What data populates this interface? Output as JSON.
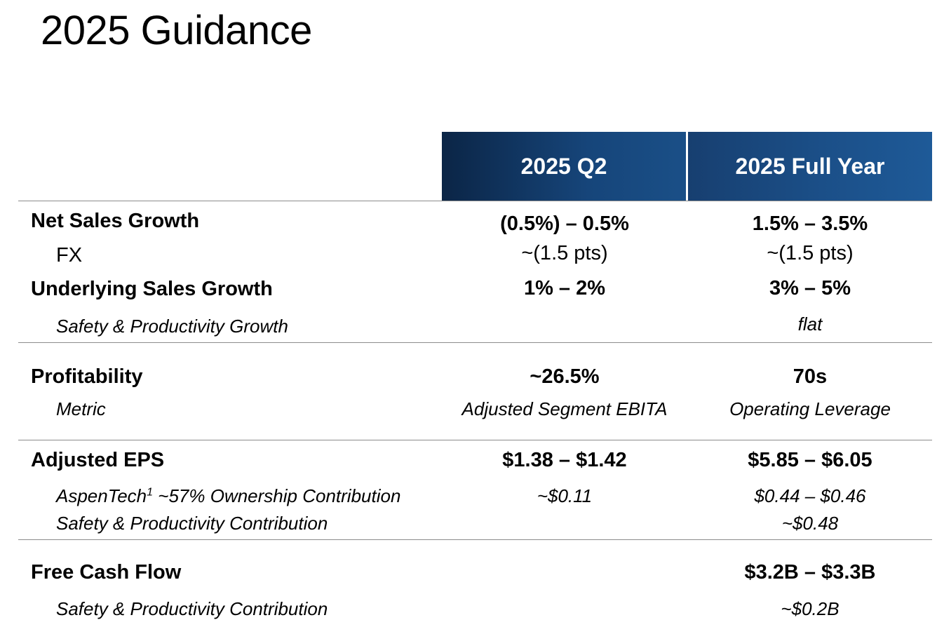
{
  "title": "2025 Guidance",
  "columns": {
    "q2": "2025 Q2",
    "fy": "2025 Full Year"
  },
  "colors": {
    "header_dark": "#0b2546",
    "header_light": "#1e5a98",
    "header_text": "#ffffff",
    "divider": "#8c8c8c"
  },
  "rows": [
    {
      "label": "Net Sales Growth",
      "q2": "(0.5%) – 0.5%",
      "fy": "1.5% – 3.5%"
    },
    {
      "label": "FX",
      "q2": "~(1.5 pts)",
      "fy": "~(1.5 pts)"
    },
    {
      "label": "Underlying Sales Growth",
      "q2": "1% – 2%",
      "fy": "3% – 5%"
    },
    {
      "label": "Safety & Productivity Growth",
      "q2": "",
      "fy": "flat"
    },
    {
      "label": "Profitability",
      "q2": "~26.5%",
      "fy": "70s"
    },
    {
      "label": "Metric",
      "q2": "Adjusted Segment EBITA",
      "fy": "Operating Leverage"
    },
    {
      "label": "Adjusted EPS",
      "q2": "$1.38 – $1.42",
      "fy": "$5.85 – $6.05"
    },
    {
      "label": "AspenTech",
      "label_sup": "1",
      "label_suffix": " ~57% Ownership Contribution",
      "q2": "~$0.11",
      "fy": "$0.44 – $0.46"
    },
    {
      "label": "Safety & Productivity Contribution",
      "q2": "",
      "fy": "~$0.48"
    },
    {
      "label": "Free Cash Flow",
      "q2": "",
      "fy": "$3.2B – $3.3B"
    },
    {
      "label": "Safety & Productivity Contribution",
      "q2": "",
      "fy": "~$0.2B"
    }
  ]
}
